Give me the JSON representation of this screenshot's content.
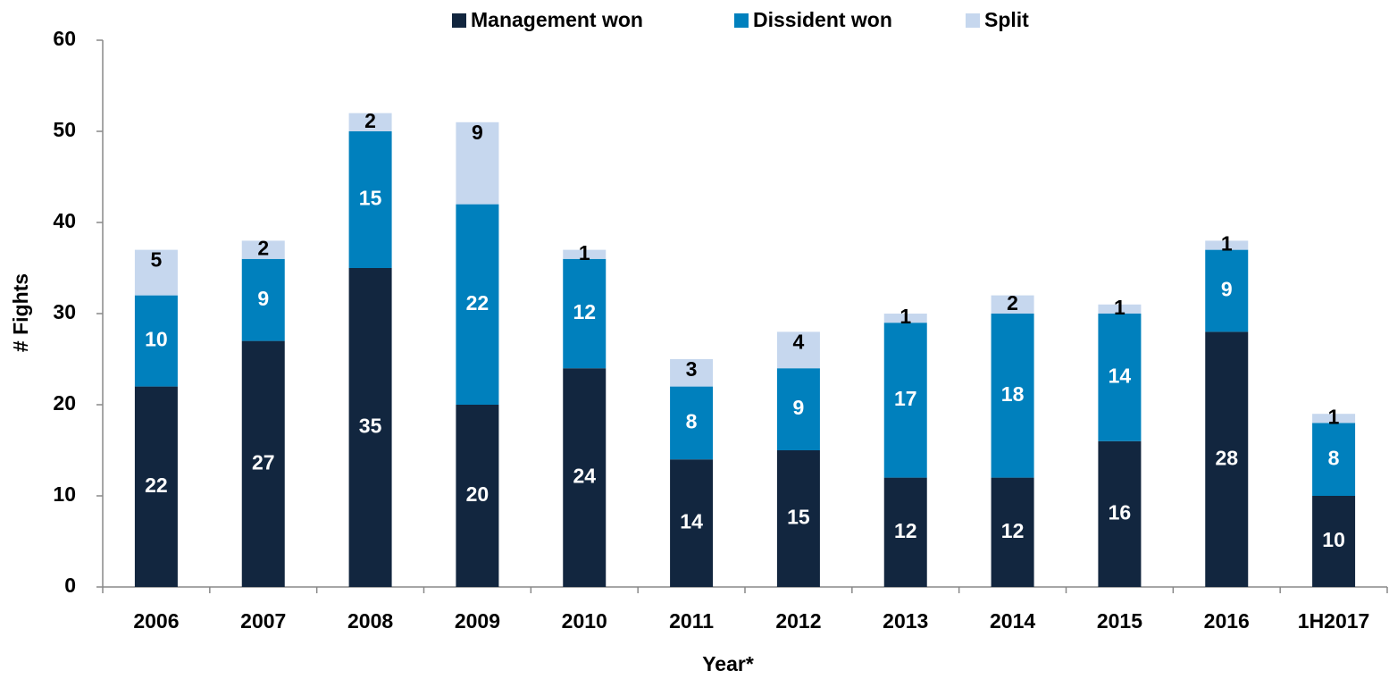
{
  "chart_data": {
    "type": "stacked_bar",
    "x_label": "Year*",
    "y_label": "# Fights",
    "categories": [
      "2006",
      "2007",
      "2008",
      "2009",
      "2010",
      "2011",
      "2012",
      "2013",
      "2014",
      "2015",
      "2016",
      "1H2017"
    ],
    "series": [
      {
        "name": "Management won",
        "color": "#12263f",
        "label_color": "#ffffff",
        "values": [
          22,
          27,
          35,
          20,
          24,
          14,
          15,
          12,
          12,
          16,
          28,
          10
        ]
      },
      {
        "name": "Dissident won",
        "color": "#0080bd",
        "label_color": "#ffffff",
        "values": [
          10,
          9,
          15,
          22,
          12,
          8,
          9,
          17,
          18,
          14,
          9,
          8
        ]
      },
      {
        "name": "Split",
        "color": "#c6d7ee",
        "label_color": "#000000",
        "values": [
          5,
          2,
          2,
          9,
          1,
          3,
          4,
          1,
          2,
          1,
          1,
          1
        ]
      }
    ],
    "ylim": [
      0,
      60
    ],
    "yticks": [
      0,
      10,
      20,
      30,
      40,
      50,
      60
    ],
    "legend": "top"
  }
}
